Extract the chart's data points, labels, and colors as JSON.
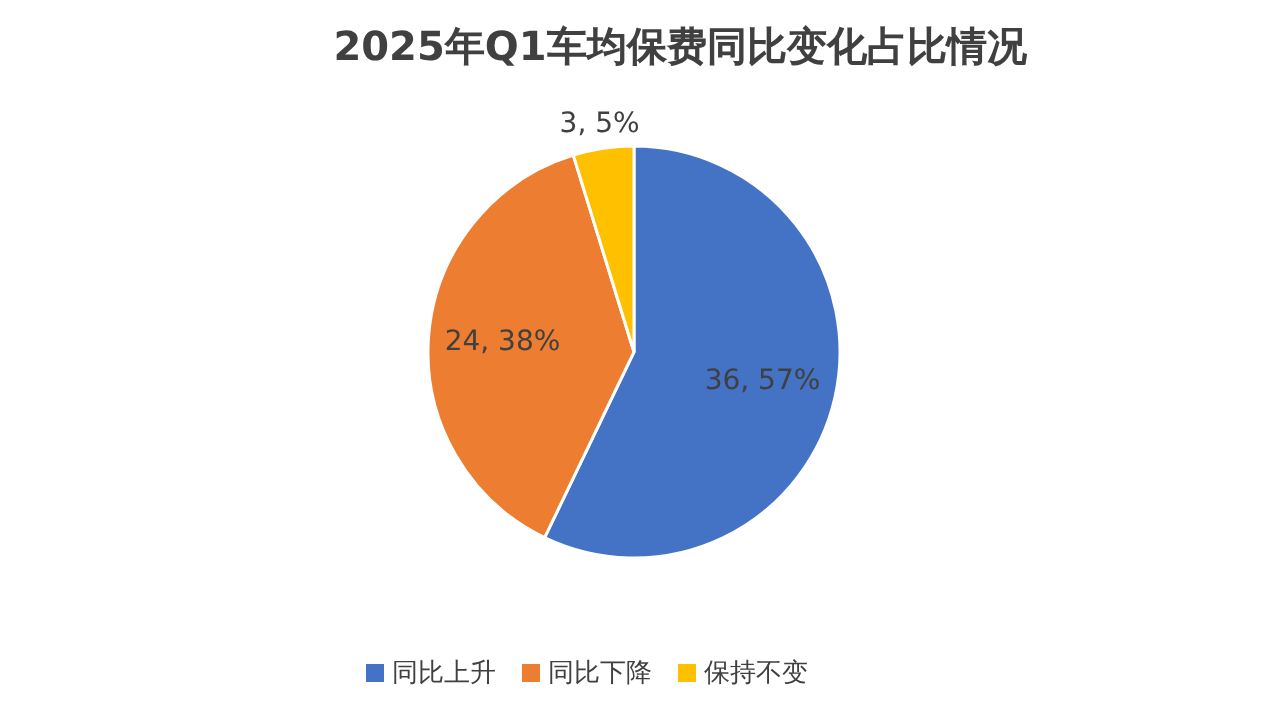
{
  "chart_data": {
    "type": "pie",
    "title": "2025年Q1车均保费同比变化占比情况",
    "categories": [
      "同比上升",
      "同比下降",
      "保持不变"
    ],
    "values": [
      36,
      24,
      3
    ],
    "colors": [
      "#4472c4",
      "#ed7d31",
      "#ffc000"
    ],
    "value_labels": [
      "36, 57%",
      "24, 38%",
      "3, 5%"
    ],
    "legend": "bottom"
  }
}
